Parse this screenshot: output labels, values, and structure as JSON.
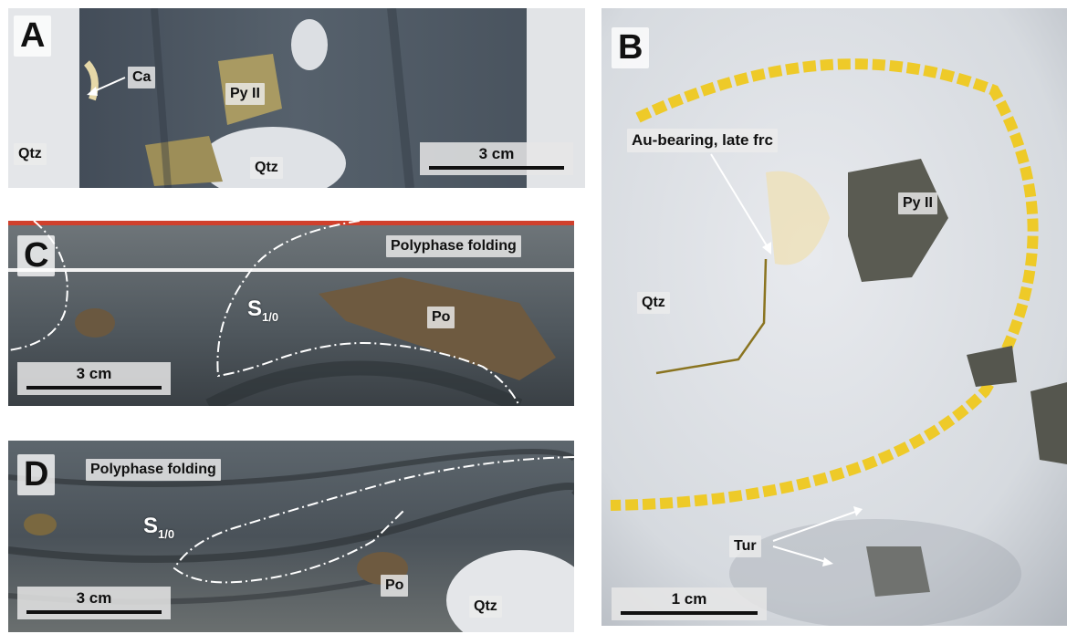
{
  "panels": {
    "a": {
      "letter": "A",
      "labels": {
        "ca": "Ca",
        "py2": "Py II",
        "qtz_left": "Qtz",
        "qtz_mid": "Qtz"
      },
      "scale": "3 cm"
    },
    "b": {
      "letter": "B",
      "labels": {
        "au": "Au-bearing, late frc",
        "py2": "Py II",
        "qtz": "Qtz",
        "tur": "Tur"
      },
      "scale": "1 cm"
    },
    "c": {
      "letter": "C",
      "labels": {
        "folding": "Polyphase folding",
        "foliation_s": "S",
        "foliation_sub": "1/0",
        "po": "Po"
      },
      "scale": "3 cm"
    },
    "d": {
      "letter": "D",
      "labels": {
        "folding": "Polyphase folding",
        "foliation_s": "S",
        "foliation_sub": "1/0",
        "po": "Po",
        "qtz": "Qtz"
      },
      "scale": "3 cm"
    }
  },
  "colors": {
    "rock_dark": "#4a5560",
    "quartz": "#e6e8ea",
    "pyrite": "#a89660",
    "pyrrhotite": "#6e5a40",
    "yellow_marker": "#f0c814",
    "red_edge": "#d0402c"
  }
}
